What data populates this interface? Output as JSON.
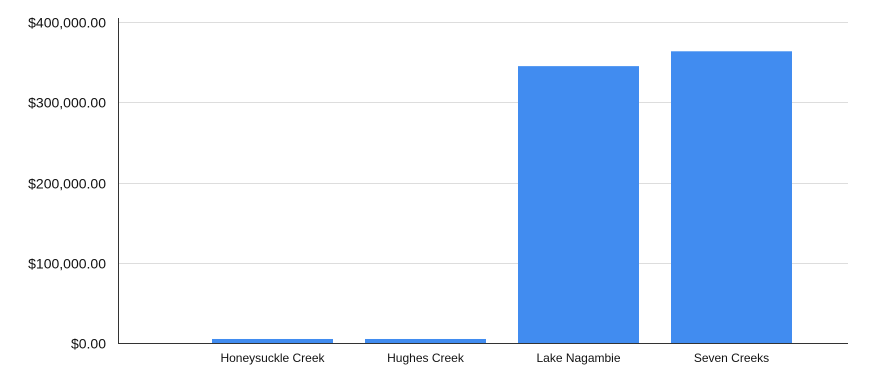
{
  "chart_data": {
    "type": "bar",
    "categories": [
      "Honeysuckle Creek",
      "Hughes Creek",
      "Lake Nagambie",
      "Seven Creeks"
    ],
    "values": [
      5000,
      5000,
      345000,
      363500
    ],
    "y_tick_labels": [
      "$0.00",
      "$100,000.00",
      "$200,000.00",
      "$300,000.00",
      "$400,000.00"
    ],
    "y_ticks": [
      0,
      100000,
      200000,
      300000,
      400000
    ],
    "ylim": [
      0,
      400000
    ],
    "grid": true,
    "bar_color": "#418cf0",
    "grid_color": "#dddddd",
    "axis_color": "#333333"
  }
}
